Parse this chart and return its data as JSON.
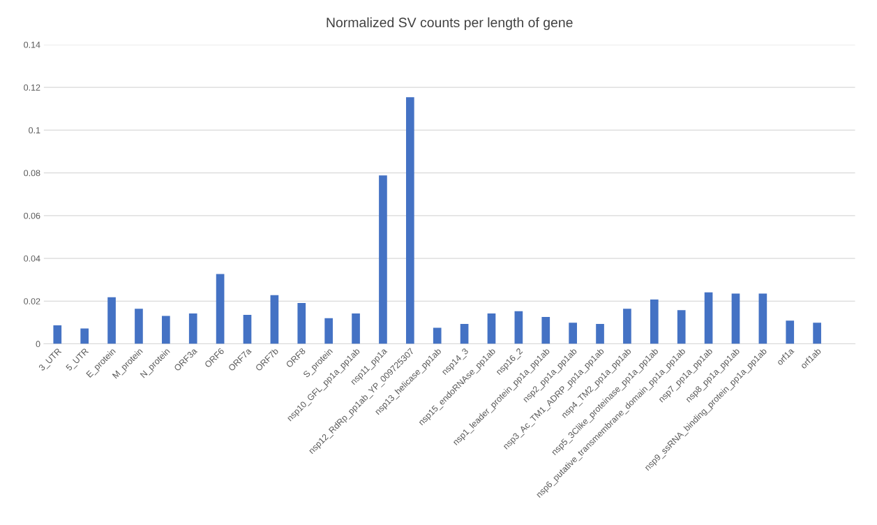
{
  "chart_data": {
    "type": "bar",
    "title": "Normalized SV counts per length of gene",
    "categories": [
      "3_UTR",
      "5_UTR",
      "E_protein",
      "M_protein",
      "N_protein",
      "ORF3a",
      "ORF6",
      "ORF7a",
      "ORF7b",
      "ORF8",
      "S_protein",
      "nsp10_GFL_pp1a_pp1ab",
      "nsp11_pp1a",
      "nsp12_RdRp_pp1ab_YP_009725307",
      "nsp13_helicase_pp1ab",
      "nsp14_3",
      "nsp15_endoRNAse_pp1ab",
      "nsp16_2",
      "nsp1_leader_protein_pp1a_pp1ab",
      "nsp2_pp1a_pp1ab",
      "nsp3_Ac_TM1_ADRP_pp1a_pp1ab",
      "nsp4_TM2_pp1a_pp1ab",
      "nsp5_3Clike_proteinase_pp1a_pp1ab",
      "nsp6_putative_transmembrane_domain_pp1a_pp1ab",
      "nsp7_pp1a_pp1ab",
      "nsp8_pp1a_pp1ab",
      "nsp9_ssRNA_binding_protein_pp1a_pp1ab",
      "orf1a",
      "orf1ab"
    ],
    "values": [
      0.0087,
      0.0072,
      0.0218,
      0.0164,
      0.0131,
      0.0142,
      0.0327,
      0.0136,
      0.0228,
      0.0191,
      0.012,
      0.0142,
      0.0788,
      0.1154,
      0.0075,
      0.0093,
      0.0142,
      0.0153,
      0.0126,
      0.0099,
      0.0093,
      0.0164,
      0.0208,
      0.0158,
      0.0241,
      0.0235,
      0.0235,
      0.0109,
      0.0099
    ],
    "color": "#4472c4",
    "ylim": [
      0,
      0.14
    ],
    "yticks": [
      0,
      0.02,
      0.04,
      0.06,
      0.08,
      0.1,
      0.12,
      0.14
    ],
    "grid": "y"
  }
}
